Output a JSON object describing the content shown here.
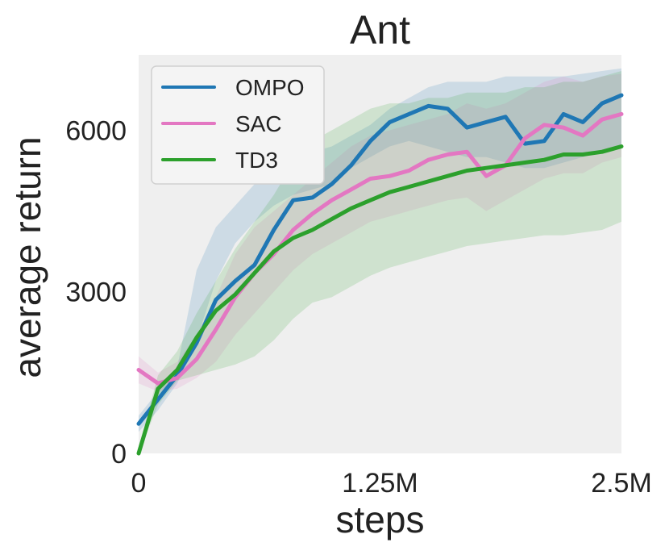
{
  "chart_data": {
    "type": "line",
    "title": "Ant",
    "xlabel": "steps",
    "ylabel": "average return",
    "xlim": [
      0,
      2.5
    ],
    "ylim": [
      0,
      7400
    ],
    "x_ticks": [
      0,
      1.25,
      2.5
    ],
    "x_tick_labels": [
      "0",
      "1.25M",
      "2.5M"
    ],
    "y_ticks": [
      0,
      3000,
      6000
    ],
    "y_tick_labels": [
      "0",
      "3000",
      "6000"
    ],
    "grid": false,
    "legend_position": "top-left",
    "x": [
      0,
      0.1,
      0.2,
      0.3,
      0.4,
      0.5,
      0.6,
      0.7,
      0.8,
      0.9,
      1.0,
      1.1,
      1.2,
      1.3,
      1.4,
      1.5,
      1.6,
      1.7,
      1.8,
      1.9,
      2.0,
      2.1,
      2.2,
      2.3,
      2.4,
      2.5
    ],
    "series": [
      {
        "name": "OMPO",
        "color": "#1f77b4",
        "values": [
          550,
          1000,
          1450,
          2050,
          2850,
          3200,
          3500,
          4150,
          4700,
          4750,
          5000,
          5350,
          5800,
          6150,
          6300,
          6450,
          6400,
          6050,
          6150,
          6250,
          5750,
          5800,
          6300,
          6150,
          6500,
          6650
        ],
        "lower": [
          400,
          800,
          1300,
          2100,
          3200,
          3900,
          4300,
          4600,
          4800,
          4900,
          5000,
          5300,
          5500,
          5700,
          5800,
          5700,
          5600,
          5500,
          5500,
          5400,
          5300,
          5300,
          5400,
          5500,
          5600,
          5700
        ],
        "upper": [
          700,
          1150,
          1600,
          3400,
          4200,
          4600,
          5000,
          5300,
          5500,
          5600,
          5700,
          5900,
          6100,
          6400,
          6600,
          6800,
          6900,
          6900,
          6900,
          7000,
          7000,
          7000,
          7000,
          7050,
          7100,
          7150
        ]
      },
      {
        "name": "SAC",
        "color": "#e377c2",
        "values": [
          1550,
          1300,
          1400,
          1750,
          2300,
          2900,
          3350,
          3700,
          4150,
          4450,
          4700,
          4900,
          5100,
          5150,
          5250,
          5450,
          5550,
          5600,
          5150,
          5350,
          5850,
          6100,
          6050,
          5900,
          6200,
          6300
        ],
        "lower": [
          1300,
          1150,
          1200,
          1400,
          1700,
          2200,
          2600,
          3000,
          3400,
          3700,
          3900,
          4100,
          4300,
          4400,
          4500,
          4600,
          4700,
          4750,
          4500,
          4700,
          4900,
          5100,
          5200,
          5200,
          5400,
          5500
        ],
        "upper": [
          1800,
          1500,
          1700,
          2200,
          2900,
          3700,
          4200,
          4500,
          4800,
          5100,
          5400,
          5700,
          5900,
          6000,
          6100,
          6200,
          6300,
          6500,
          6400,
          6500,
          6700,
          6900,
          7000,
          6900,
          7000,
          7050
        ]
      },
      {
        "name": "TD3",
        "color": "#2ca02c",
        "values": [
          0,
          1200,
          1550,
          2150,
          2650,
          2950,
          3350,
          3750,
          4000,
          4150,
          4350,
          4550,
          4700,
          4850,
          4950,
          5050,
          5150,
          5250,
          5300,
          5350,
          5400,
          5450,
          5550,
          5550,
          5600,
          5700
        ],
        "lower": [
          0,
          900,
          1350,
          1450,
          1550,
          1650,
          1800,
          2100,
          2500,
          2800,
          2900,
          3100,
          3300,
          3450,
          3550,
          3650,
          3750,
          3850,
          3900,
          3950,
          4000,
          4050,
          4050,
          4100,
          4150,
          4300
        ],
        "upper": [
          100,
          1450,
          1900,
          2600,
          3200,
          3800,
          4300,
          4800,
          5400,
          5800,
          6000,
          6200,
          6400,
          6500,
          6500,
          6600,
          6600,
          6700,
          6700,
          6700,
          6800,
          6800,
          6900,
          6900,
          7000,
          7100
        ]
      }
    ]
  }
}
